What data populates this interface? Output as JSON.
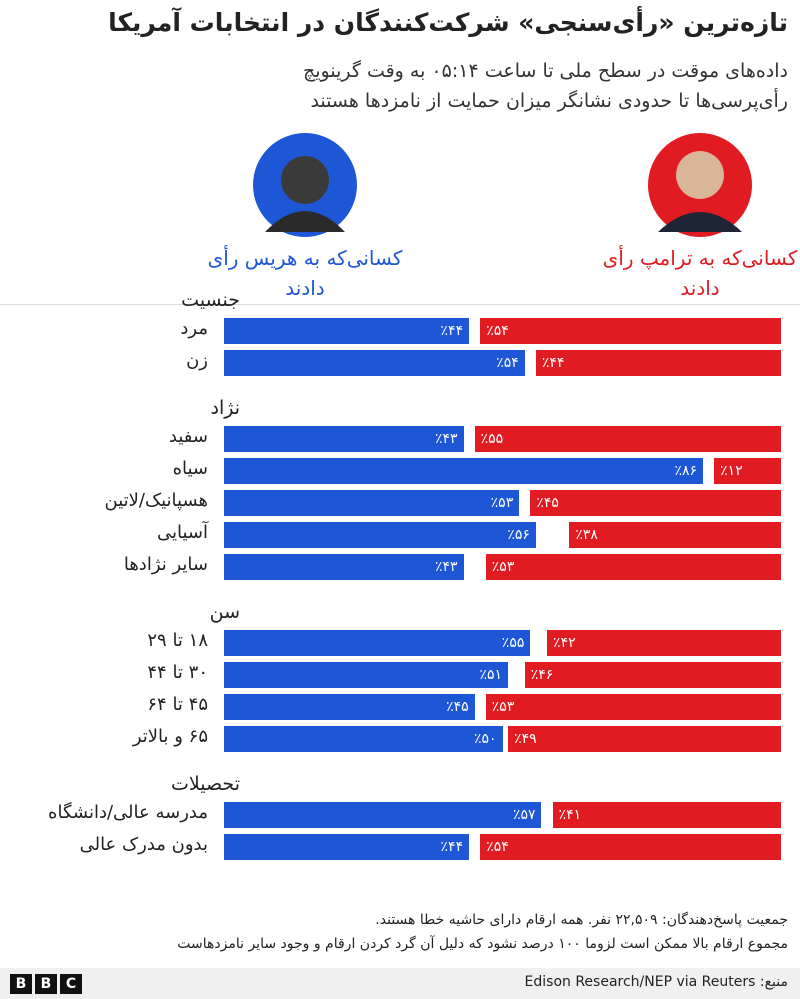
{
  "chart_data": {
    "type": "bar",
    "title": "تازه‌ترین «رأی‌سنجی» شرکت‌کنندگان در انتخابات آمریکا",
    "subtitle": [
      "داده‌های موقت در سطح ملی تا ساعت ۰۵:۱۴ به وقت گرینویچ",
      "رأی‌پرسی‌ها تا حدودی نشانگر میزان حمایت از نامزدها هستند"
    ],
    "xlim": [
      0,
      100
    ],
    "series": [
      {
        "name": "کسانی‌که به هریس رأی دادند",
        "color": "#1d57d6"
      },
      {
        "name": "کسانی‌که به ترامپ رأی دادند",
        "color": "#e11b22"
      }
    ],
    "groups": [
      {
        "title": "جنسیت",
        "categories": [
          "مرد",
          "زن"
        ],
        "series": [
          {
            "values": [
              44,
              54
            ],
            "value_labels": [
              "٪۴۴",
              "٪۵۴"
            ]
          },
          {
            "values": [
              54,
              44
            ],
            "value_labels": [
              "٪۵۴",
              "٪۴۴"
            ]
          }
        ]
      },
      {
        "title": "نژاد",
        "categories": [
          "سفید",
          "سیاه",
          "هسپانیک/لاتین",
          "آسیایی",
          "سایر نژادها"
        ],
        "series": [
          {
            "values": [
              43,
              86,
              53,
              56,
              43
            ],
            "value_labels": [
              "٪۴۳",
              "٪۸۶",
              "٪۵۳",
              "٪۵۶",
              "٪۴۳"
            ]
          },
          {
            "values": [
              55,
              12,
              45,
              38,
              53
            ],
            "value_labels": [
              "٪۵۵",
              "٪۱۲",
              "٪۴۵",
              "٪۳۸",
              "٪۵۳"
            ]
          }
        ]
      },
      {
        "title": "سن",
        "categories": [
          "۱۸ تا ۲۹",
          "۳۰ تا ۴۴",
          "۴۵ تا ۶۴",
          "۶۵ و بالاتر"
        ],
        "series": [
          {
            "values": [
              55,
              51,
              45,
              50
            ],
            "value_labels": [
              "٪۵۵",
              "٪۵۱",
              "٪۴۵",
              "٪۵۰"
            ]
          },
          {
            "values": [
              42,
              46,
              53,
              49
            ],
            "value_labels": [
              "٪۴۲",
              "٪۴۶",
              "٪۵۳",
              "٪۴۹"
            ]
          }
        ]
      },
      {
        "title": "تحصیلات",
        "categories": [
          "مدرسه عالی/دانشگاه",
          "بدون مدرک عالی"
        ],
        "series": [
          {
            "values": [
              57,
              44
            ],
            "value_labels": [
              "٪۵۷",
              "٪۴۴"
            ]
          },
          {
            "values": [
              41,
              54
            ],
            "value_labels": [
              "٪۴۱",
              "٪۵۴"
            ]
          }
        ]
      }
    ],
    "notes": [
      "جمعیت پاسخ‌دهندگان: ۲۲,۵۰۹ نفر. همه ارقام دارای حاشیه خطا هستند.",
      "مجموع ارقام بالا ممکن است لزوما ۱۰۰ درصد نشود که دلیل آن گرد کردن ارقام و وجود سایر نامزدهاست"
    ],
    "source": "منبع: Edison Research/NEP via Reuters",
    "logo": [
      "B",
      "B",
      "C"
    ]
  }
}
